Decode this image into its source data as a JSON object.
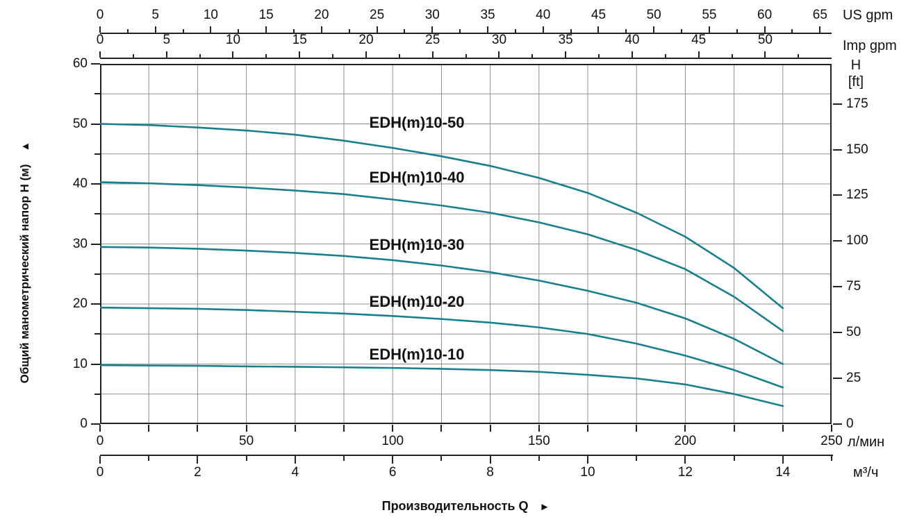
{
  "chart_data": {
    "type": "line",
    "title": "",
    "curve_color": "#177f8e",
    "grid": true,
    "x_range_m3h": [
      0,
      15
    ],
    "y_range_m": [
      0,
      60
    ],
    "x_major_unit_m3h": 1,
    "y_major_unit_m": 5,
    "x_axes": {
      "us_gpm": {
        "unit": "US gpm",
        "ticks": [
          0,
          5,
          10,
          15,
          20,
          25,
          30,
          35,
          40,
          45,
          50,
          55,
          60,
          65
        ]
      },
      "imp_gpm": {
        "unit": "Imp gpm",
        "ticks": [
          0,
          5,
          10,
          15,
          20,
          25,
          30,
          35,
          40,
          45,
          50
        ]
      },
      "l_min": {
        "unit": "л/мин",
        "ticks": [
          0,
          50,
          100,
          150,
          200,
          250
        ]
      },
      "m3h": {
        "unit": "м³/ч",
        "ticks": [
          0,
          2,
          4,
          6,
          8,
          10,
          12,
          14
        ]
      }
    },
    "y_axes": {
      "left": {
        "label": "Общий манометрический напор H (м)",
        "arrow": "▲",
        "ticks": [
          60,
          50,
          40,
          30,
          20,
          10,
          0
        ]
      },
      "right": {
        "label_line1": "H",
        "label_line2": "[ft]",
        "ticks": [
          175,
          150,
          125,
          100,
          75,
          50,
          25,
          0
        ]
      }
    },
    "x_label": "Производительность Q",
    "x_label_arrow": "►",
    "series": [
      {
        "name": "EDH(m)10-50",
        "points": [
          [
            0,
            50.0
          ],
          [
            1,
            49.8
          ],
          [
            2,
            49.4
          ],
          [
            3,
            48.9
          ],
          [
            4,
            48.2
          ],
          [
            5,
            47.2
          ],
          [
            6,
            46.0
          ],
          [
            7,
            44.6
          ],
          [
            8,
            43.0
          ],
          [
            9,
            41.0
          ],
          [
            10,
            38.5
          ],
          [
            11,
            35.2
          ],
          [
            12,
            31.2
          ],
          [
            13,
            26.0
          ],
          [
            14,
            19.3
          ]
        ]
      },
      {
        "name": "EDH(m)10-40",
        "points": [
          [
            0,
            40.3
          ],
          [
            1,
            40.1
          ],
          [
            2,
            39.8
          ],
          [
            3,
            39.4
          ],
          [
            4,
            38.9
          ],
          [
            5,
            38.3
          ],
          [
            6,
            37.4
          ],
          [
            7,
            36.4
          ],
          [
            8,
            35.2
          ],
          [
            9,
            33.6
          ],
          [
            10,
            31.6
          ],
          [
            11,
            29.0
          ],
          [
            12,
            25.8
          ],
          [
            13,
            21.2
          ],
          [
            14,
            15.5
          ]
        ]
      },
      {
        "name": "EDH(m)10-30",
        "points": [
          [
            0,
            29.5
          ],
          [
            1,
            29.4
          ],
          [
            2,
            29.2
          ],
          [
            3,
            28.9
          ],
          [
            4,
            28.5
          ],
          [
            5,
            28.0
          ],
          [
            6,
            27.3
          ],
          [
            7,
            26.4
          ],
          [
            8,
            25.3
          ],
          [
            9,
            23.9
          ],
          [
            10,
            22.2
          ],
          [
            11,
            20.2
          ],
          [
            12,
            17.6
          ],
          [
            13,
            14.2
          ],
          [
            14,
            10.0
          ]
        ]
      },
      {
        "name": "EDH(m)10-20",
        "points": [
          [
            0,
            19.4
          ],
          [
            1,
            19.3
          ],
          [
            2,
            19.2
          ],
          [
            3,
            19.0
          ],
          [
            4,
            18.7
          ],
          [
            5,
            18.4
          ],
          [
            6,
            18.0
          ],
          [
            7,
            17.5
          ],
          [
            8,
            16.9
          ],
          [
            9,
            16.1
          ],
          [
            10,
            15.0
          ],
          [
            11,
            13.4
          ],
          [
            12,
            11.4
          ],
          [
            13,
            9.0
          ],
          [
            14,
            6.1
          ]
        ]
      },
      {
        "name": "EDH(m)10-10",
        "points": [
          [
            0,
            9.8
          ],
          [
            1,
            9.75
          ],
          [
            2,
            9.7
          ],
          [
            3,
            9.6
          ],
          [
            4,
            9.55
          ],
          [
            5,
            9.45
          ],
          [
            6,
            9.35
          ],
          [
            7,
            9.2
          ],
          [
            8,
            9.0
          ],
          [
            9,
            8.7
          ],
          [
            10,
            8.2
          ],
          [
            11,
            7.6
          ],
          [
            12,
            6.6
          ],
          [
            13,
            5.0
          ],
          [
            14,
            3.0
          ]
        ]
      }
    ]
  }
}
